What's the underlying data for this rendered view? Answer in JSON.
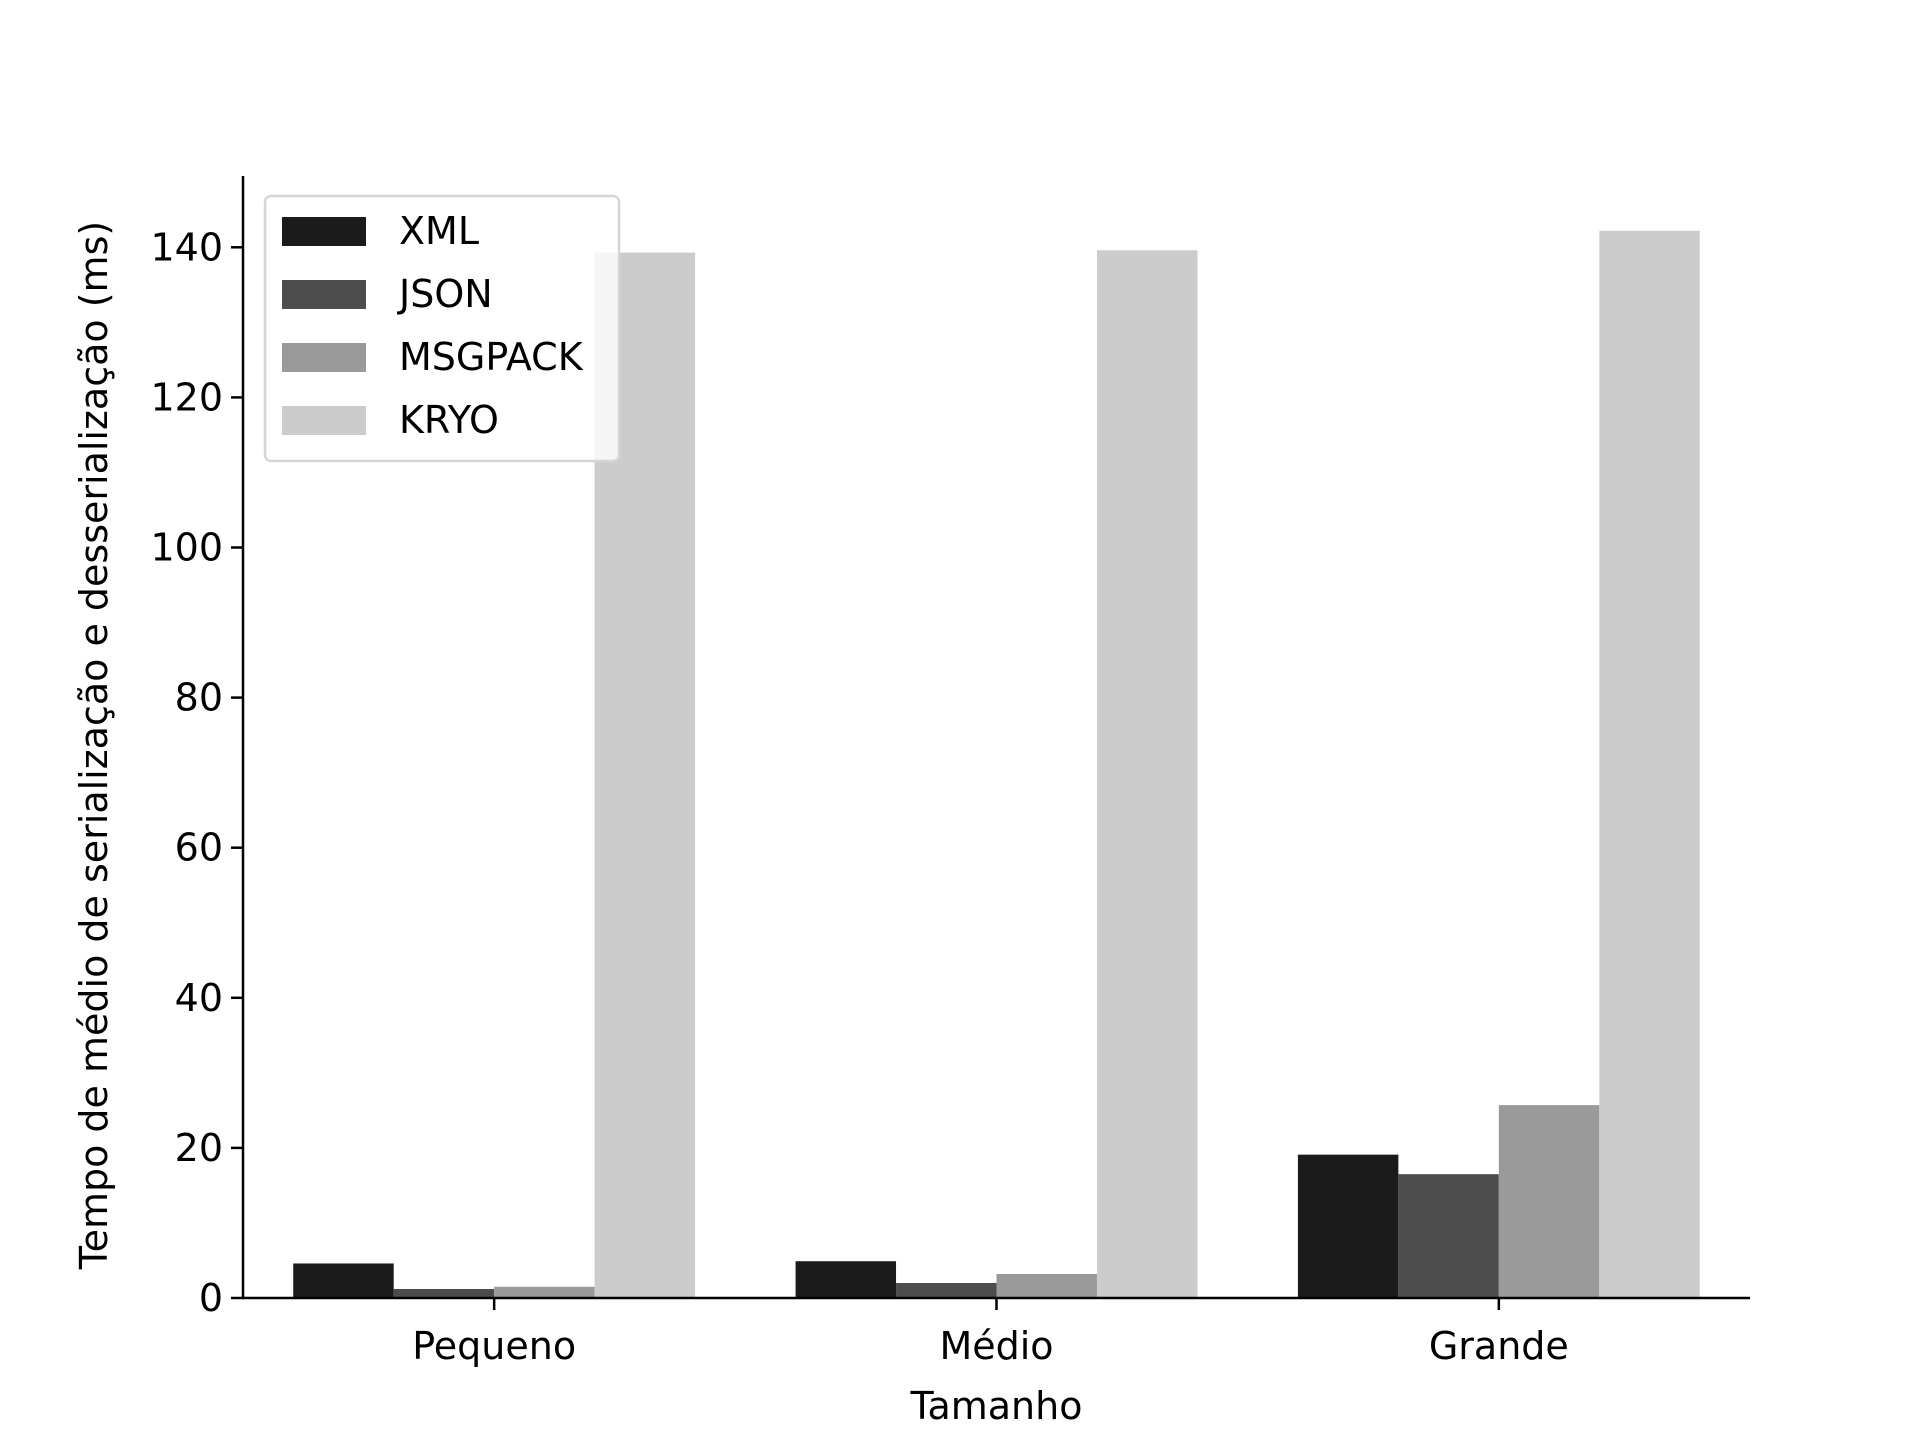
{
  "chart_data": {
    "type": "bar",
    "title": "",
    "xlabel": "Tamanho",
    "ylabel": "Tempo de médio de serialização e desserialização (ms)",
    "categories": [
      "Pequeno",
      "Médio",
      "Grande"
    ],
    "series": [
      {
        "name": "XML",
        "color": "#1b1b1b",
        "values": [
          4.6,
          4.9,
          19.1
        ]
      },
      {
        "name": "JSON",
        "color": "#4d4d4d",
        "values": [
          1.2,
          2.0,
          16.5
        ]
      },
      {
        "name": "MSGPACK",
        "color": "#9a9a9a",
        "values": [
          1.5,
          3.2,
          25.7
        ]
      },
      {
        "name": "KRYO",
        "color": "#cccccc",
        "values": [
          139.3,
          139.6,
          142.2
        ]
      }
    ],
    "ylim": [
      0,
      149.5
    ],
    "yticks": [
      0,
      20,
      40,
      60,
      80,
      100,
      120,
      140
    ],
    "legend_position": "top-left",
    "grid": false
  }
}
